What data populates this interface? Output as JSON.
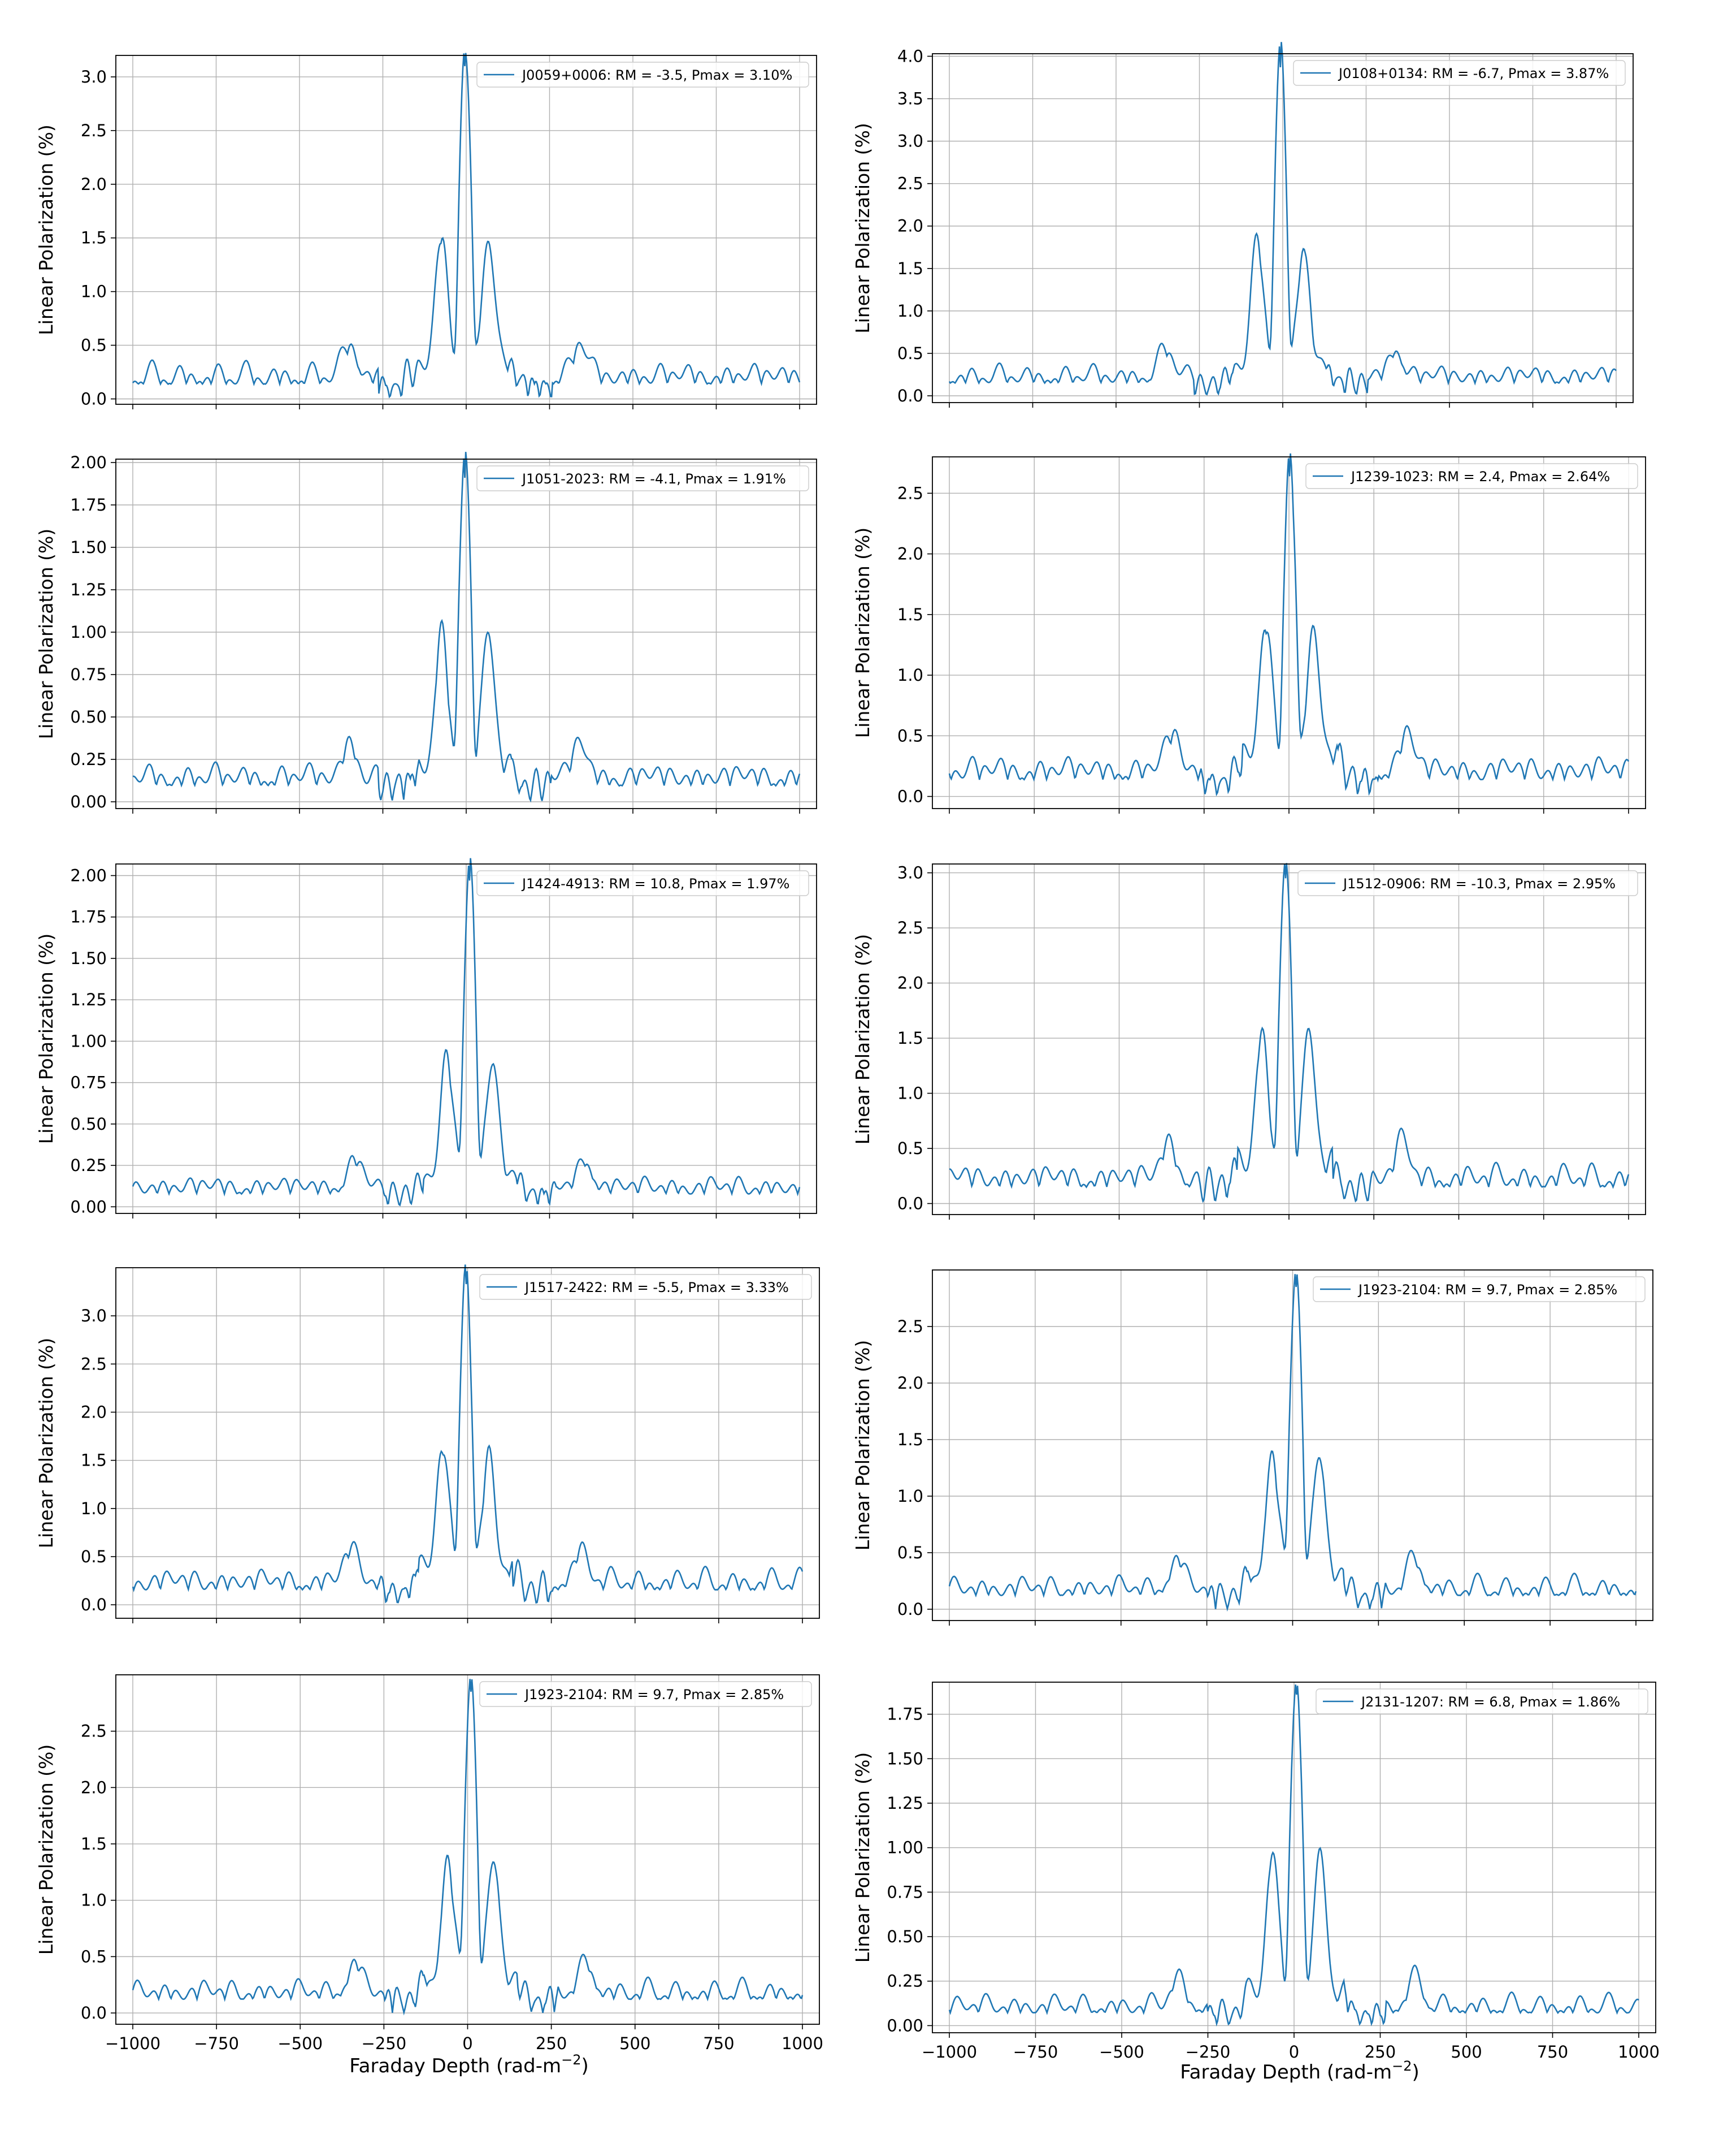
{
  "figure": {
    "series_color": "#1f77b4",
    "x_axis_label_plain": "Faraday Depth (rad-m",
    "x_axis_label_sup": "−2",
    "x_axis_label_close": ")"
  },
  "chart_data": [
    {
      "type": "line",
      "source": "J0059+0006",
      "legend": "J0059+0006: RM = -3.5, Pmax = 3.10%",
      "rm": -3.5,
      "pmax": 3.1,
      "xlabel": "",
      "ylabel": "Linear Polarization (%)",
      "xlim": [
        -1000,
        1000
      ],
      "ylim": [
        -0.05,
        3.2
      ],
      "xticks": [
        -1000,
        -750,
        -500,
        -250,
        0,
        250,
        500,
        750,
        1000
      ],
      "xticklabels": [],
      "yticks": [
        0.0,
        0.5,
        1.0,
        1.5,
        2.0,
        2.5,
        3.0
      ],
      "yticklabels": [
        "0.0",
        "0.5",
        "1.0",
        "1.5",
        "2.0",
        "2.5",
        "3.0"
      ],
      "sidelobe": 1.32,
      "floor": 0.25,
      "seed": 1,
      "grid": true,
      "legend_position": "upper right"
    },
    {
      "type": "line",
      "source": "J0108+0134",
      "legend": "J0108+0134: RM = -6.7, Pmax = 3.87%",
      "rm": -6.7,
      "pmax": 3.87,
      "xlabel": "",
      "ylabel": "Linear Polarization (%)",
      "xlim": [
        -1000,
        1000
      ],
      "ylim": [
        -0.08,
        4.03
      ],
      "xticks": [
        -1000,
        -750,
        -500,
        -250,
        0,
        250,
        500,
        750,
        1000
      ],
      "xticklabels": [],
      "yticks": [
        0.0,
        0.5,
        1.0,
        1.5,
        2.0,
        2.5,
        3.0,
        3.5,
        4.0
      ],
      "yticklabels": [
        "0.0",
        "0.5",
        "1.0",
        "1.5",
        "2.0",
        "2.5",
        "3.0",
        "3.5",
        "4.0"
      ],
      "sidelobe": 1.6,
      "floor": 0.27,
      "seed": 2,
      "grid": true,
      "legend_position": "upper right"
    },
    {
      "type": "line",
      "source": "J1051-2023",
      "legend": "J1051-2023: RM = -4.1, Pmax = 1.91%",
      "rm": -4.1,
      "pmax": 1.91,
      "xlabel": "",
      "ylabel": "Linear Polarization (%)",
      "xlim": [
        -1000,
        1000
      ],
      "ylim": [
        -0.04,
        2.02
      ],
      "xticks": [
        -1000,
        -750,
        -500,
        -250,
        0,
        250,
        500,
        750,
        1000
      ],
      "xticklabels": [],
      "yticks": [
        0.0,
        0.25,
        0.5,
        0.75,
        1.0,
        1.25,
        1.5,
        1.75,
        2.0
      ],
      "yticklabels": [
        "0.00",
        "0.25",
        "0.50",
        "0.75",
        "1.00",
        "1.25",
        "1.50",
        "1.75",
        "2.00"
      ],
      "sidelobe": 0.88,
      "floor": 0.17,
      "seed": 3,
      "grid": true,
      "legend_position": "upper right"
    },
    {
      "type": "line",
      "source": "J1239-1023",
      "legend": "J1239-1023: RM =  2.4, Pmax = 2.64%",
      "rm": 2.4,
      "pmax": 2.64,
      "xlabel": "",
      "ylabel": "Linear Polarization (%)",
      "xlim": [
        -1000,
        1000
      ],
      "ylim": [
        -0.1,
        2.8
      ],
      "xticks": [
        -1000,
        -750,
        -500,
        -250,
        0,
        250,
        500,
        750,
        1000
      ],
      "xticklabels": [],
      "yticks": [
        0.0,
        0.5,
        1.0,
        1.5,
        2.0,
        2.5
      ],
      "yticklabels": [
        "0.0",
        "0.5",
        "1.0",
        "1.5",
        "2.0",
        "2.5"
      ],
      "sidelobe": 1.2,
      "floor": 0.25,
      "seed": 4,
      "grid": true,
      "legend_position": "upper right"
    },
    {
      "type": "line",
      "source": "J1424-4913",
      "legend": "J1424-4913: RM = 10.8, Pmax = 1.97%",
      "rm": 10.8,
      "pmax": 1.97,
      "xlabel": "",
      "ylabel": "Linear Polarization (%)",
      "xlim": [
        -1000,
        1000
      ],
      "ylim": [
        -0.04,
        2.07
      ],
      "xticks": [
        -1000,
        -750,
        -500,
        -250,
        0,
        250,
        500,
        750,
        1000
      ],
      "xticklabels": [],
      "yticks": [
        0.0,
        0.25,
        0.5,
        0.75,
        1.0,
        1.25,
        1.5,
        1.75,
        2.0
      ],
      "yticklabels": [
        "0.00",
        "0.25",
        "0.50",
        "0.75",
        "1.00",
        "1.25",
        "1.50",
        "1.75",
        "2.00"
      ],
      "sidelobe": 0.8,
      "floor": 0.14,
      "seed": 5,
      "grid": true,
      "legend_position": "upper right"
    },
    {
      "type": "line",
      "source": "J1512-0906",
      "legend": "J1512-0906: RM = -10.3, Pmax = 2.95%",
      "rm": -10.3,
      "pmax": 2.95,
      "xlabel": "",
      "ylabel": "Linear Polarization (%)",
      "xlim": [
        -1000,
        1000
      ],
      "ylim": [
        -0.1,
        3.08
      ],
      "xticks": [
        -1000,
        -750,
        -500,
        -250,
        0,
        250,
        500,
        750,
        1000
      ],
      "xticklabels": [],
      "yticks": [
        0.0,
        0.5,
        1.0,
        1.5,
        2.0,
        2.5,
        3.0
      ],
      "yticklabels": [
        "0.0",
        "0.5",
        "1.0",
        "1.5",
        "2.0",
        "2.5",
        "3.0"
      ],
      "sidelobe": 1.33,
      "floor": 0.27,
      "seed": 6,
      "grid": true,
      "legend_position": "upper right"
    },
    {
      "type": "line",
      "source": "J1517-2422",
      "legend": "J1517-2422: RM = -5.5, Pmax = 3.33%",
      "rm": -5.5,
      "pmax": 3.33,
      "xlabel": "",
      "ylabel": "Linear Polarization (%)",
      "xlim": [
        -1000,
        1000
      ],
      "ylim": [
        -0.14,
        3.5
      ],
      "xticks": [
        -1000,
        -750,
        -500,
        -250,
        0,
        250,
        500,
        750,
        1000
      ],
      "xticklabels": [],
      "yticks": [
        0.0,
        0.5,
        1.0,
        1.5,
        2.0,
        2.5,
        3.0
      ],
      "yticklabels": [
        "0.0",
        "0.5",
        "1.0",
        "1.5",
        "2.0",
        "2.5",
        "3.0"
      ],
      "sidelobe": 1.4,
      "floor": 0.28,
      "seed": 7,
      "grid": true,
      "legend_position": "upper right"
    },
    {
      "type": "line",
      "source": "J1923-2104",
      "legend": "J1923-2104: RM =  9.7, Pmax = 2.85%",
      "rm": 9.7,
      "pmax": 2.85,
      "xlabel": "",
      "ylabel": "Linear Polarization (%)",
      "xlim": [
        -1000,
        1000
      ],
      "ylim": [
        -0.1,
        3.0
      ],
      "xticks": [
        -1000,
        -750,
        -500,
        -250,
        0,
        250,
        500,
        750,
        1000
      ],
      "xticklabels": [],
      "yticks": [
        0.0,
        0.5,
        1.0,
        1.5,
        2.0,
        2.5
      ],
      "yticklabels": [
        "0.0",
        "0.5",
        "1.0",
        "1.5",
        "2.0",
        "2.5"
      ],
      "sidelobe": 1.2,
      "floor": 0.22,
      "seed": 8,
      "grid": true,
      "legend_position": "upper right"
    },
    {
      "type": "line",
      "source": "J1923-2104",
      "legend": "J1923-2104: RM =  9.7, Pmax = 2.85%",
      "rm": 9.7,
      "pmax": 2.85,
      "xlabel": "",
      "ylabel": "Linear Polarization (%)",
      "xlim": [
        -1000,
        1000
      ],
      "ylim": [
        -0.1,
        3.0
      ],
      "xticks": [
        -1000,
        -750,
        -500,
        -250,
        0,
        250,
        500,
        750,
        1000
      ],
      "xticklabels": [
        "−1000",
        "−750",
        "−500",
        "−250",
        "0",
        "250",
        "500",
        "750",
        "1000"
      ],
      "yticks": [
        0.0,
        0.5,
        1.0,
        1.5,
        2.0,
        2.5
      ],
      "yticklabels": [
        "0.0",
        "0.5",
        "1.0",
        "1.5",
        "2.0",
        "2.5"
      ],
      "sidelobe": 1.2,
      "floor": 0.22,
      "seed": 8,
      "grid": true,
      "legend_position": "upper right"
    },
    {
      "type": "line",
      "source": "J2131-1207",
      "legend": "J2131-1207: RM =  6.8, Pmax = 1.86%",
      "rm": 6.8,
      "pmax": 1.86,
      "xlabel": "",
      "ylabel": "Linear Polarization (%)",
      "xlim": [
        -1000,
        1000
      ],
      "ylim": [
        -0.04,
        1.93
      ],
      "xticks": [
        -1000,
        -750,
        -500,
        -250,
        0,
        250,
        500,
        750,
        1000
      ],
      "xticklabels": [
        "−1000",
        "−750",
        "−500",
        "−250",
        "0",
        "250",
        "500",
        "750",
        "1000"
      ],
      "yticks": [
        0.0,
        0.25,
        0.5,
        0.75,
        1.0,
        1.25,
        1.5,
        1.75
      ],
      "yticklabels": [
        "0.00",
        "0.25",
        "0.50",
        "0.75",
        "1.00",
        "1.25",
        "1.50",
        "1.75"
      ],
      "sidelobe": 0.86,
      "floor": 0.13,
      "seed": 9,
      "grid": true,
      "legend_position": "upper right"
    }
  ]
}
